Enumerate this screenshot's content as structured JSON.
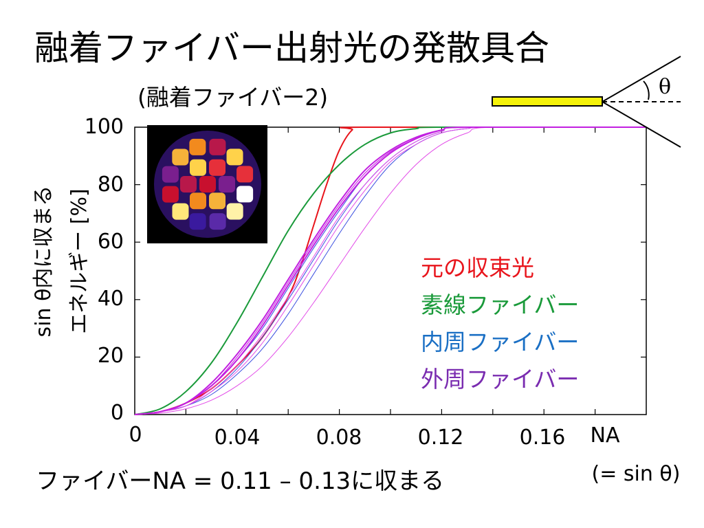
{
  "slide": {
    "title": "融着ファイバー出射光の発散具合",
    "subtitle": "(融着ファイバー2)",
    "note": "ファイバーNA = 0.11 – 0.13に収まる",
    "theta_symbol": "θ"
  },
  "chart_data": {
    "type": "line",
    "ylabel_line1": "sin θ内に収まる",
    "ylabel_line2": "エネルギー [%]",
    "xlabel": "NA",
    "xlabel_sub": "(= sin θ)",
    "xlim": [
      0,
      0.2
    ],
    "ylim": [
      0,
      100
    ],
    "x_ticks": [
      "0",
      "0.04",
      "0.08",
      "0.12",
      "0.16"
    ],
    "y_ticks": [
      "0",
      "20",
      "40",
      "60",
      "80",
      "100"
    ],
    "grid": false,
    "legend_position": "right",
    "legend": [
      {
        "label": "元の収束光",
        "color": "#e8141b"
      },
      {
        "label": "素線ファイバー",
        "color": "#1a9a3a"
      },
      {
        "label": "内周ファイバー",
        "color": "#1a6fc4"
      },
      {
        "label": "外周ファイバー",
        "color": "#7a2cb0"
      }
    ],
    "series": [
      {
        "name": "元の収束光",
        "color": "#e8141b",
        "width": 2,
        "points": [
          [
            0,
            0
          ],
          [
            0.01,
            1
          ],
          [
            0.02,
            4
          ],
          [
            0.03,
            9
          ],
          [
            0.04,
            17
          ],
          [
            0.05,
            27
          ],
          [
            0.06,
            41
          ],
          [
            0.065,
            52
          ],
          [
            0.07,
            66
          ],
          [
            0.075,
            80
          ],
          [
            0.08,
            92
          ],
          [
            0.085,
            99
          ],
          [
            0.09,
            100
          ],
          [
            0.2,
            100
          ]
        ]
      },
      {
        "name": "素線ファイバー",
        "color": "#1a9a3a",
        "width": 2,
        "points": [
          [
            0,
            0
          ],
          [
            0.01,
            2
          ],
          [
            0.02,
            8
          ],
          [
            0.03,
            18
          ],
          [
            0.04,
            32
          ],
          [
            0.05,
            48
          ],
          [
            0.06,
            64
          ],
          [
            0.07,
            77
          ],
          [
            0.08,
            87
          ],
          [
            0.09,
            94
          ],
          [
            0.1,
            98
          ],
          [
            0.11,
            99.5
          ],
          [
            0.12,
            100
          ],
          [
            0.2,
            100
          ]
        ]
      },
      {
        "name": "内周ファイバー",
        "color": "#3b4fe0",
        "width": 1,
        "points": [
          [
            0,
            0
          ],
          [
            0.01,
            1
          ],
          [
            0.02,
            4
          ],
          [
            0.03,
            10
          ],
          [
            0.04,
            19
          ],
          [
            0.05,
            30
          ],
          [
            0.06,
            44
          ],
          [
            0.07,
            58
          ],
          [
            0.08,
            71
          ],
          [
            0.09,
            83
          ],
          [
            0.1,
            91
          ],
          [
            0.11,
            96
          ],
          [
            0.12,
            99
          ],
          [
            0.13,
            100
          ],
          [
            0.2,
            100
          ]
        ]
      },
      {
        "name": "内周ファイバー",
        "color": "#3b4fe0",
        "width": 1,
        "points": [
          [
            0,
            0
          ],
          [
            0.01,
            1
          ],
          [
            0.02,
            3
          ],
          [
            0.03,
            7
          ],
          [
            0.04,
            14
          ],
          [
            0.05,
            23
          ],
          [
            0.06,
            35
          ],
          [
            0.07,
            49
          ],
          [
            0.08,
            63
          ],
          [
            0.09,
            76
          ],
          [
            0.1,
            87
          ],
          [
            0.11,
            94
          ],
          [
            0.12,
            98
          ],
          [
            0.13,
            99.5
          ],
          [
            0.14,
            100
          ],
          [
            0.2,
            100
          ]
        ]
      },
      {
        "name": "内周ファイバー",
        "color": "#3b4fe0",
        "width": 1,
        "points": [
          [
            0,
            0
          ],
          [
            0.01,
            1
          ],
          [
            0.02,
            3
          ],
          [
            0.03,
            8
          ],
          [
            0.04,
            16
          ],
          [
            0.05,
            27
          ],
          [
            0.06,
            40
          ],
          [
            0.07,
            54
          ],
          [
            0.08,
            68
          ],
          [
            0.09,
            80
          ],
          [
            0.1,
            89
          ],
          [
            0.11,
            95
          ],
          [
            0.12,
            98.5
          ],
          [
            0.13,
            100
          ],
          [
            0.2,
            100
          ]
        ]
      },
      {
        "name": "外周ファイバー",
        "color": "#e24be8",
        "width": 1,
        "points": [
          [
            0,
            0
          ],
          [
            0.01,
            0.5
          ],
          [
            0.02,
            2
          ],
          [
            0.03,
            5
          ],
          [
            0.04,
            10
          ],
          [
            0.05,
            17
          ],
          [
            0.06,
            27
          ],
          [
            0.07,
            39
          ],
          [
            0.08,
            52
          ],
          [
            0.09,
            65
          ],
          [
            0.1,
            77
          ],
          [
            0.11,
            87
          ],
          [
            0.12,
            94
          ],
          [
            0.13,
            98
          ],
          [
            0.14,
            100
          ],
          [
            0.2,
            100
          ]
        ]
      },
      {
        "name": "外周ファイバー",
        "color": "#e24be8",
        "width": 1,
        "points": [
          [
            0,
            0
          ],
          [
            0.01,
            1
          ],
          [
            0.02,
            3
          ],
          [
            0.03,
            8
          ],
          [
            0.04,
            15
          ],
          [
            0.05,
            25
          ],
          [
            0.06,
            38
          ],
          [
            0.07,
            52
          ],
          [
            0.08,
            66
          ],
          [
            0.09,
            78
          ],
          [
            0.1,
            88
          ],
          [
            0.11,
            94
          ],
          [
            0.12,
            98
          ],
          [
            0.13,
            99.5
          ],
          [
            0.14,
            100
          ],
          [
            0.2,
            100
          ]
        ]
      },
      {
        "name": "外周ファイバー",
        "color": "#c21fe0",
        "width": 2,
        "points": [
          [
            0,
            0
          ],
          [
            0.01,
            1
          ],
          [
            0.02,
            4
          ],
          [
            0.03,
            10
          ],
          [
            0.04,
            19
          ],
          [
            0.05,
            31
          ],
          [
            0.06,
            45
          ],
          [
            0.07,
            59
          ],
          [
            0.08,
            72
          ],
          [
            0.09,
            83
          ],
          [
            0.1,
            91
          ],
          [
            0.11,
            96
          ],
          [
            0.12,
            99
          ],
          [
            0.13,
            100
          ],
          [
            0.2,
            100
          ]
        ]
      },
      {
        "name": "外周ファイバー",
        "color": "#c21fe0",
        "width": 2,
        "points": [
          [
            0,
            0
          ],
          [
            0.01,
            1
          ],
          [
            0.02,
            4
          ],
          [
            0.03,
            11
          ],
          [
            0.04,
            21
          ],
          [
            0.05,
            33
          ],
          [
            0.06,
            47
          ],
          [
            0.07,
            61
          ],
          [
            0.08,
            74
          ],
          [
            0.09,
            85
          ],
          [
            0.1,
            92
          ],
          [
            0.11,
            96.5
          ],
          [
            0.12,
            99
          ],
          [
            0.13,
            100
          ],
          [
            0.2,
            100
          ]
        ]
      },
      {
        "name": "外周ファイバー",
        "color": "#e24be8",
        "width": 1,
        "points": [
          [
            0,
            0
          ],
          [
            0.01,
            1
          ],
          [
            0.02,
            3
          ],
          [
            0.03,
            9
          ],
          [
            0.04,
            17
          ],
          [
            0.05,
            28
          ],
          [
            0.06,
            41
          ],
          [
            0.07,
            55
          ],
          [
            0.08,
            69
          ],
          [
            0.09,
            80
          ],
          [
            0.1,
            89
          ],
          [
            0.11,
            95
          ],
          [
            0.12,
            98.5
          ],
          [
            0.13,
            100
          ],
          [
            0.2,
            100
          ]
        ]
      },
      {
        "name": "外周ファイバー",
        "color": "#c21fe0",
        "width": 1,
        "points": [
          [
            0,
            0
          ],
          [
            0.01,
            1
          ],
          [
            0.02,
            4
          ],
          [
            0.03,
            10
          ],
          [
            0.04,
            20
          ],
          [
            0.05,
            32
          ],
          [
            0.06,
            46
          ],
          [
            0.07,
            60
          ],
          [
            0.08,
            73
          ],
          [
            0.09,
            84
          ],
          [
            0.1,
            91.5
          ],
          [
            0.11,
            96
          ],
          [
            0.12,
            99
          ],
          [
            0.13,
            100
          ],
          [
            0.2,
            100
          ]
        ]
      }
    ]
  },
  "inset_image": {
    "label": "fiber-bundle-cross-section",
    "cell_colors": [
      "#c8102e",
      "#ffd24a",
      "#3a1a9e",
      "#f28a1e",
      "#fff2a8",
      "#7a1f8e",
      "#e6303a",
      "#ffe87a",
      "#b8184a",
      "#5a2aa8",
      "#f5b23a",
      "#ffffff"
    ]
  }
}
